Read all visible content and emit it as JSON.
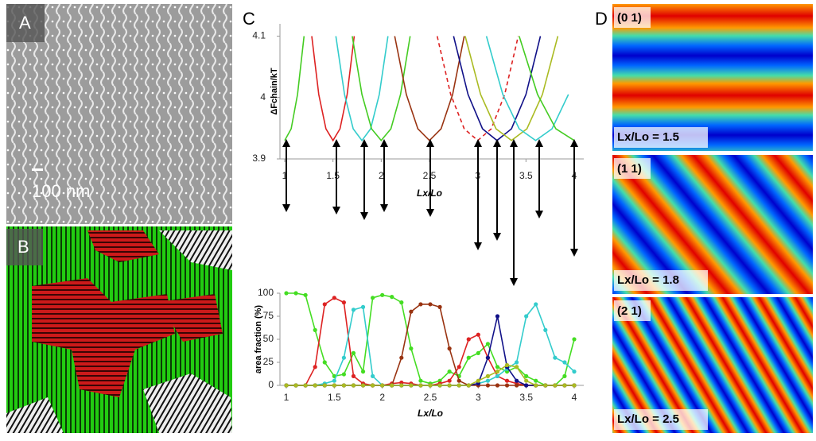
{
  "figure": {
    "panel_a": "A",
    "panel_b": "B",
    "panel_c": "C",
    "panel_d": "D",
    "scale_bar": "100 nm",
    "d_images": [
      {
        "index": "(0 1)",
        "ratio": "Lx/Lo = 1.5"
      },
      {
        "index": "(1 1)",
        "ratio": "Lx/Lo = 1.8"
      },
      {
        "index": "(2 1)",
        "ratio": "Lx/Lo = 2.5"
      }
    ]
  },
  "chart_data": [
    {
      "type": "line",
      "ylabel": "ΔFchain/kT",
      "xlabel": "Lx/Lo",
      "xlim": [
        1,
        4
      ],
      "xticks": [
        1,
        1.5,
        2,
        2.5,
        3,
        3.5,
        4
      ],
      "ylim": [
        3.9,
        4.12
      ],
      "yticks": [
        3.9,
        4,
        4.1
      ],
      "series": [
        {
          "color": "#44cc22",
          "x": [
            1,
            1.067,
            1.133,
            1.2
          ],
          "values": [
            3.93,
            3.949,
            4.005,
            4.1
          ]
        },
        {
          "color": "#dd2222",
          "x": [
            1.28,
            1.353,
            1.427,
            1.5,
            1.573,
            1.647,
            1.72
          ],
          "values": [
            4.1,
            4.005,
            3.949,
            3.93,
            3.949,
            4.005,
            4.1
          ]
        },
        {
          "color": "#33cccc",
          "x": [
            1.53,
            1.62,
            1.71,
            1.8,
            1.89,
            1.98,
            2.07
          ],
          "values": [
            4.1,
            4.005,
            3.949,
            3.93,
            3.949,
            4.005,
            4.1
          ]
        },
        {
          "color": "#44cc22",
          "x": [
            1.7,
            1.8,
            1.9,
            2.0,
            2.1,
            2.2,
            2.3
          ],
          "values": [
            4.1,
            4.005,
            3.949,
            3.93,
            3.949,
            4.005,
            4.1
          ]
        },
        {
          "color": "#993311",
          "x": [
            2.14,
            2.26,
            2.38,
            2.5,
            2.62,
            2.74,
            2.86
          ],
          "values": [
            4.1,
            4.005,
            3.949,
            3.93,
            3.949,
            4.005,
            4.1
          ]
        },
        {
          "color": "#dd2222",
          "dashed": true,
          "x": [
            2.58,
            2.72,
            2.86,
            3.0,
            3.14,
            3.28,
            3.42
          ],
          "values": [
            4.1,
            4.005,
            3.949,
            3.93,
            3.949,
            4.005,
            4.1
          ]
        },
        {
          "color": "#111188",
          "x": [
            2.75,
            2.9,
            3.05,
            3.2,
            3.35,
            3.5,
            3.65
          ],
          "values": [
            4.1,
            4.005,
            3.949,
            3.93,
            3.949,
            4.005,
            4.1
          ]
        },
        {
          "color": "#aabb22",
          "x": [
            2.87,
            3.03,
            3.19,
            3.35,
            3.51,
            3.67,
            3.83
          ],
          "values": [
            4.1,
            4.005,
            3.949,
            3.93,
            3.949,
            4.005,
            4.1
          ]
        },
        {
          "color": "#33cccc",
          "x": [
            3.09,
            3.26,
            3.43,
            3.6,
            3.77,
            3.94
          ],
          "values": [
            4.1,
            4.005,
            3.949,
            3.93,
            3.949,
            4.005
          ]
        },
        {
          "color": "#44cc22",
          "x": [
            3.43,
            3.62,
            3.81,
            4.0
          ],
          "values": [
            4.1,
            4.005,
            3.949,
            3.93
          ]
        }
      ]
    },
    {
      "type": "line",
      "ylabel": "area fraction (%)",
      "xlabel": "Lx/Lo",
      "markers": true,
      "xlim": [
        1,
        4
      ],
      "xticks": [
        1,
        1.5,
        2,
        2.5,
        3,
        3.5,
        4
      ],
      "ylim": [
        0,
        100
      ],
      "yticks": [
        0,
        25,
        50,
        75,
        100
      ],
      "series": [
        {
          "color": "#44dd22",
          "x": [
            1,
            1.1,
            1.2,
            1.3,
            1.4,
            1.5,
            1.6,
            1.7,
            1.8,
            1.9,
            2,
            2.1,
            2.2,
            2.3,
            2.4,
            2.5,
            2.6,
            2.7,
            2.8,
            2.9,
            3,
            3.1,
            3.2,
            3.3,
            3.4,
            3.5,
            3.6,
            3.7,
            3.8,
            3.9,
            4
          ],
          "values": [
            100,
            100,
            98,
            60,
            25,
            10,
            12,
            35,
            15,
            95,
            98,
            96,
            90,
            40,
            5,
            2,
            5,
            15,
            10,
            30,
            35,
            45,
            20,
            15,
            20,
            10,
            5,
            0,
            0,
            10,
            50
          ]
        },
        {
          "color": "#dd2222",
          "x": [
            1,
            1.1,
            1.2,
            1.3,
            1.4,
            1.5,
            1.6,
            1.7,
            1.8,
            1.9,
            2,
            2.1,
            2.2,
            2.3,
            2.4,
            2.5,
            2.6,
            2.7,
            2.8,
            2.9,
            3,
            3.1,
            3.2,
            3.3,
            3.4,
            3.5,
            3.6,
            3.7,
            3.8,
            3.9,
            4
          ],
          "values": [
            0,
            0,
            0,
            20,
            88,
            95,
            90,
            10,
            2,
            0,
            0,
            2,
            3,
            2,
            0,
            0,
            2,
            5,
            20,
            50,
            55,
            30,
            10,
            5,
            2,
            0,
            0,
            0,
            0,
            0,
            0
          ]
        },
        {
          "color": "#33cccc",
          "x": [
            1,
            1.1,
            1.2,
            1.3,
            1.4,
            1.5,
            1.6,
            1.7,
            1.8,
            1.9,
            2,
            2.1,
            2.2,
            2.3,
            2.4,
            2.5,
            2.6,
            2.7,
            2.8,
            2.9,
            3,
            3.1,
            3.2,
            3.3,
            3.4,
            3.5,
            3.6,
            3.7,
            3.8,
            3.9,
            4
          ],
          "values": [
            0,
            0,
            0,
            0,
            2,
            5,
            30,
            82,
            85,
            10,
            0,
            0,
            0,
            0,
            0,
            0,
            0,
            0,
            0,
            0,
            2,
            5,
            10,
            18,
            25,
            75,
            88,
            60,
            30,
            25,
            15
          ]
        },
        {
          "color": "#993311",
          "x": [
            1,
            1.1,
            1.2,
            1.3,
            1.4,
            1.5,
            1.6,
            1.7,
            1.8,
            1.9,
            2,
            2.1,
            2.2,
            2.3,
            2.4,
            2.5,
            2.6,
            2.7,
            2.8,
            2.9,
            3,
            3.1,
            3.2,
            3.3,
            3.4,
            3.5,
            3.6,
            3.7,
            3.8,
            3.9,
            4
          ],
          "values": [
            0,
            0,
            0,
            0,
            0,
            0,
            0,
            0,
            0,
            0,
            0,
            0,
            30,
            80,
            88,
            88,
            85,
            40,
            5,
            0,
            0,
            0,
            0,
            0,
            0,
            0,
            0,
            0,
            0,
            0,
            0
          ]
        },
        {
          "color": "#111188",
          "x": [
            1,
            1.1,
            1.2,
            1.3,
            1.4,
            1.5,
            1.6,
            1.7,
            1.8,
            1.9,
            2,
            2.1,
            2.2,
            2.3,
            2.4,
            2.5,
            2.6,
            2.7,
            2.8,
            2.9,
            3,
            3.1,
            3.2,
            3.3,
            3.4,
            3.5,
            3.6,
            3.7,
            3.8,
            3.9,
            4
          ],
          "values": [
            0,
            0,
            0,
            0,
            0,
            0,
            0,
            0,
            0,
            0,
            0,
            0,
            0,
            0,
            0,
            0,
            0,
            0,
            0,
            0,
            2,
            30,
            75,
            20,
            5,
            0,
            0,
            0,
            0,
            0,
            0
          ]
        },
        {
          "color": "#aabb22",
          "x": [
            1,
            1.1,
            1.2,
            1.3,
            1.4,
            1.5,
            1.6,
            1.7,
            1.8,
            1.9,
            2,
            2.1,
            2.2,
            2.3,
            2.4,
            2.5,
            2.6,
            2.7,
            2.8,
            2.9,
            3,
            3.1,
            3.2,
            3.3,
            3.4,
            3.5,
            3.6,
            3.7,
            3.8,
            3.9,
            4
          ],
          "values": [
            0,
            0,
            0,
            0,
            0,
            0,
            0,
            0,
            0,
            0,
            0,
            0,
            0,
            0,
            0,
            0,
            0,
            0,
            0,
            0,
            5,
            10,
            15,
            22,
            20,
            5,
            0,
            0,
            0,
            0,
            0
          ]
        }
      ]
    }
  ]
}
